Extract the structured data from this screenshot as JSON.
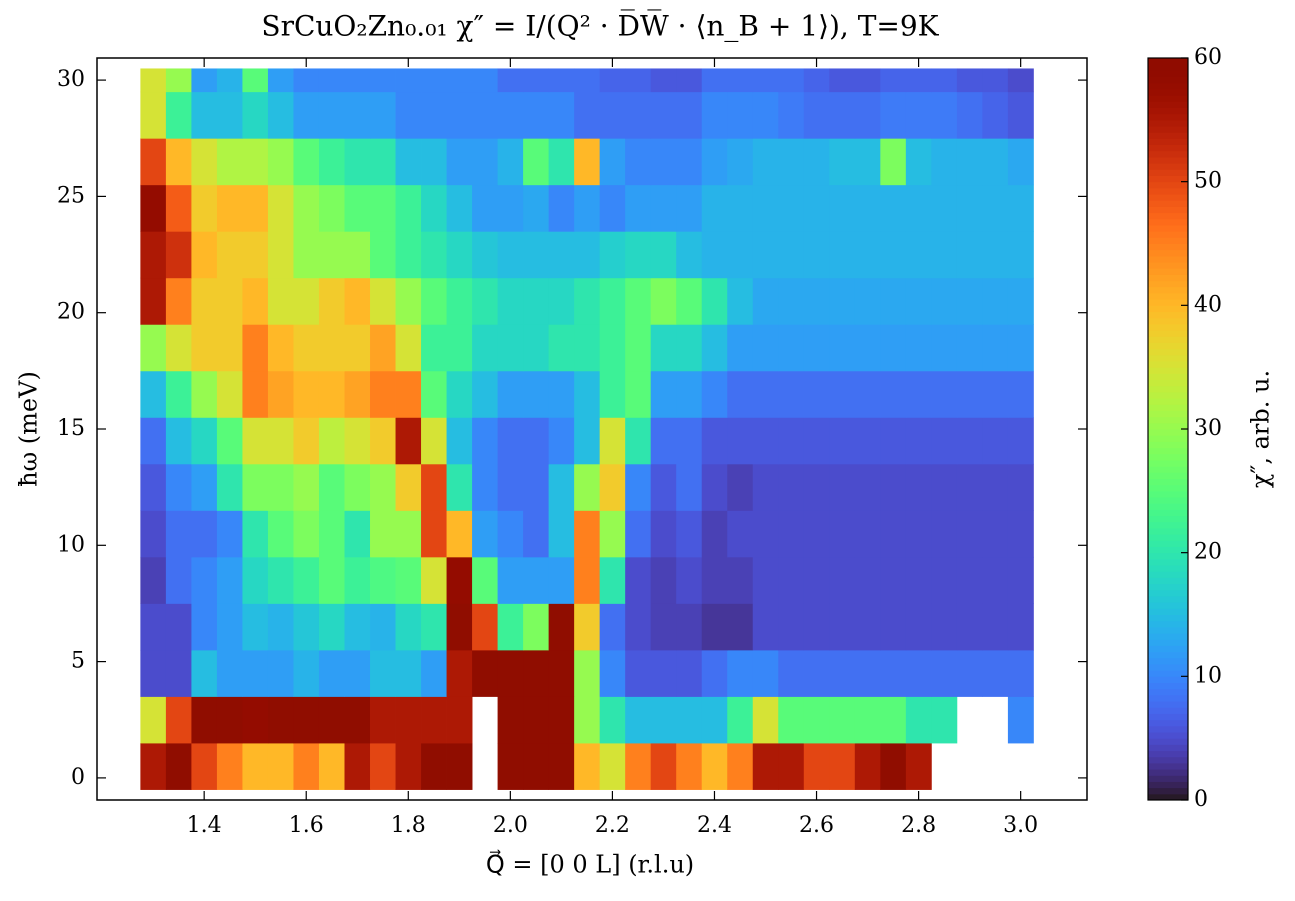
{
  "chart_data": {
    "type": "heatmap",
    "title": "SrCuO₂Zn₀.₀₁ χ″ = I/(Q² · D̅W̅ · ⟨n_B + 1⟩), T=9K",
    "x_label": "Q⃗ = [0 0 L] (r.l.u)",
    "y_label": "ħω (meV)",
    "colorbar_label": "χ″, arb. u.",
    "colormap": "turbo",
    "x_edges": [
      1.275,
      1.325,
      1.375,
      1.425,
      1.475,
      1.525,
      1.575,
      1.625,
      1.675,
      1.725,
      1.775,
      1.825,
      1.875,
      1.925,
      1.975,
      2.025,
      2.075,
      2.125,
      2.175,
      2.225,
      2.275,
      2.325,
      2.375,
      2.425,
      2.475,
      2.525,
      2.575,
      2.625,
      2.675,
      2.725,
      2.775,
      2.825,
      2.875,
      2.925,
      2.975,
      3.025
    ],
    "y_edges": [
      -0.5,
      1.5,
      3.5,
      5.5,
      7.5,
      9.5,
      11.5,
      13.5,
      15.5,
      17.5,
      19.5,
      21.5,
      23.5,
      25.5,
      27.5,
      29.5,
      30.5
    ],
    "z": [
      [
        55,
        60,
        50,
        45,
        40,
        40,
        45,
        40,
        55,
        50,
        55,
        60,
        60,
        null,
        60,
        60,
        60,
        40,
        35,
        45,
        50,
        45,
        40,
        45,
        55,
        55,
        50,
        50,
        55,
        60,
        55,
        null,
        null,
        null,
        null
      ],
      [
        35,
        50,
        60,
        60,
        58,
        60,
        60,
        60,
        60,
        55,
        55,
        55,
        55,
        null,
        60,
        60,
        60,
        30,
        20,
        15,
        15,
        15,
        15,
        22,
        35,
        25,
        25,
        25,
        25,
        25,
        20,
        20,
        null,
        null,
        10
      ],
      [
        5,
        5,
        15,
        12,
        12,
        12,
        14,
        12,
        12,
        15,
        15,
        12,
        55,
        60,
        60,
        60,
        60,
        30,
        10,
        6,
        6,
        6,
        8,
        10,
        10,
        8,
        8,
        8,
        8,
        8,
        8,
        8,
        8,
        8,
        8
      ],
      [
        5,
        5,
        10,
        12,
        15,
        14,
        16,
        18,
        15,
        14,
        18,
        20,
        60,
        50,
        22,
        28,
        60,
        38,
        8,
        5,
        4,
        4,
        3,
        3,
        5,
        5,
        5,
        5,
        5,
        5,
        5,
        5,
        5,
        5,
        5
      ],
      [
        4,
        8,
        10,
        12,
        18,
        20,
        22,
        25,
        22,
        24,
        25,
        35,
        58,
        25,
        12,
        12,
        12,
        45,
        20,
        5,
        4,
        5,
        4,
        4,
        5,
        5,
        5,
        5,
        5,
        5,
        5,
        5,
        5,
        5,
        5
      ],
      [
        5,
        8,
        8,
        10,
        20,
        25,
        28,
        25,
        20,
        30,
        30,
        50,
        40,
        12,
        10,
        8,
        15,
        45,
        30,
        8,
        5,
        6,
        4,
        5,
        5,
        5,
        5,
        5,
        5,
        5,
        5,
        5,
        5,
        5,
        5
      ],
      [
        6,
        10,
        12,
        20,
        28,
        28,
        30,
        25,
        28,
        30,
        38,
        50,
        20,
        10,
        8,
        8,
        15,
        30,
        38,
        10,
        6,
        8,
        5,
        4,
        5,
        5,
        5,
        5,
        5,
        5,
        5,
        5,
        5,
        5,
        5
      ],
      [
        8,
        15,
        18,
        25,
        35,
        35,
        38,
        33,
        35,
        38,
        55,
        35,
        15,
        10,
        8,
        8,
        10,
        15,
        35,
        20,
        8,
        8,
        6,
        6,
        6,
        6,
        6,
        6,
        6,
        6,
        6,
        6,
        6,
        6,
        6
      ],
      [
        15,
        22,
        30,
        35,
        45,
        42,
        40,
        40,
        42,
        45,
        45,
        25,
        18,
        15,
        12,
        12,
        12,
        15,
        22,
        25,
        12,
        12,
        10,
        8,
        8,
        8,
        8,
        8,
        8,
        8,
        8,
        8,
        8,
        8,
        8
      ],
      [
        30,
        35,
        38,
        38,
        45,
        40,
        38,
        38,
        38,
        42,
        35,
        22,
        22,
        18,
        18,
        18,
        20,
        20,
        22,
        25,
        18,
        18,
        15,
        12,
        12,
        12,
        12,
        12,
        12,
        12,
        12,
        12,
        12,
        12,
        12
      ],
      [
        55,
        45,
        38,
        38,
        40,
        35,
        35,
        38,
        40,
        35,
        30,
        25,
        22,
        20,
        18,
        18,
        18,
        20,
        22,
        25,
        28,
        25,
        20,
        15,
        13,
        13,
        13,
        13,
        13,
        13,
        13,
        13,
        13,
        13,
        13
      ],
      [
        55,
        52,
        40,
        38,
        38,
        35,
        30,
        30,
        30,
        25,
        22,
        20,
        18,
        16,
        15,
        15,
        15,
        15,
        17,
        18,
        18,
        15,
        14,
        14,
        14,
        14,
        14,
        14,
        14,
        14,
        14,
        14,
        14,
        14,
        14
      ],
      [
        58,
        48,
        38,
        40,
        40,
        35,
        30,
        28,
        25,
        25,
        22,
        18,
        15,
        12,
        12,
        13,
        10,
        12,
        10,
        12,
        12,
        12,
        14,
        14,
        14,
        14,
        14,
        14,
        14,
        14,
        14,
        14,
        14,
        14,
        14
      ],
      [
        50,
        40,
        35,
        32,
        32,
        30,
        25,
        22,
        20,
        20,
        15,
        15,
        12,
        12,
        14,
        25,
        20,
        40,
        12,
        10,
        10,
        10,
        12,
        13,
        14,
        14,
        14,
        15,
        15,
        28,
        15,
        14,
        14,
        14,
        13
      ],
      [
        35,
        22,
        15,
        15,
        18,
        15,
        12,
        12,
        12,
        12,
        10,
        10,
        10,
        10,
        10,
        10,
        10,
        8,
        8,
        8,
        8,
        8,
        10,
        10,
        10,
        9,
        8,
        8,
        8,
        9,
        9,
        9,
        8,
        7,
        6
      ],
      [
        35,
        30,
        12,
        14,
        25,
        12,
        10,
        10,
        10,
        10,
        10,
        10,
        10,
        10,
        8,
        8,
        8,
        8,
        7,
        7,
        6,
        6,
        8,
        8,
        8,
        8,
        7,
        6,
        6,
        7,
        7,
        7,
        6,
        6,
        5
      ]
    ],
    "xlim": [
      1.19,
      3.13
    ],
    "ylim": [
      -0.95,
      30.95
    ],
    "xticks": [
      1.4,
      1.6,
      1.8,
      {
        "value": 2,
        "label": "2.0"
      },
      2.2,
      2.4,
      2.6,
      2.8,
      {
        "value": 3,
        "label": "3.0"
      }
    ],
    "yticks": [
      0,
      5,
      10,
      15,
      20,
      25,
      30
    ],
    "clim": [
      0,
      60
    ],
    "cticks": [
      0,
      10,
      20,
      30,
      40,
      50,
      60
    ]
  }
}
